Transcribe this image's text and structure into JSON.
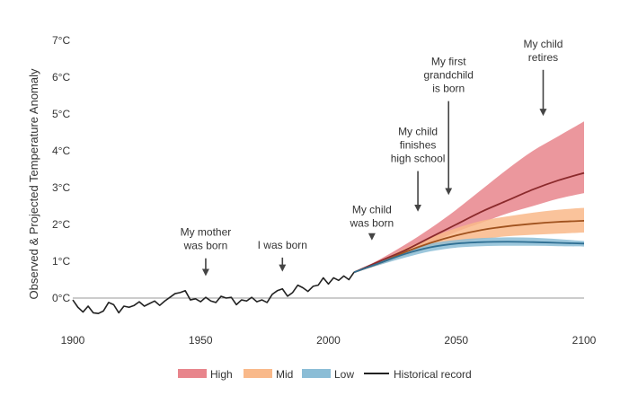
{
  "chart_data": {
    "type": "line",
    "title": "",
    "xlabel": "",
    "ylabel": "Observed & Projected Temperature Anomaly",
    "xlim": [
      1900,
      2100
    ],
    "ylim": [
      0,
      7
    ],
    "x_ticks": [
      {
        "value": 1900,
        "label": "1900"
      },
      {
        "value": 1950,
        "label": "1950"
      },
      {
        "value": 2000,
        "label": "2000"
      },
      {
        "value": 2050,
        "label": "2050"
      },
      {
        "value": 2100,
        "label": "2100"
      }
    ],
    "y_ticks": [
      {
        "value": 0,
        "label": "0°C"
      },
      {
        "value": 1,
        "label": "1°C"
      },
      {
        "value": 2,
        "label": "2°C"
      },
      {
        "value": 3,
        "label": "3°C"
      },
      {
        "value": 4,
        "label": "4°C"
      },
      {
        "value": 5,
        "label": "5°C"
      },
      {
        "value": 6,
        "label": "6°C"
      },
      {
        "value": 7,
        "label": "7°C"
      }
    ],
    "grid": false,
    "legend_position": "bottom",
    "legend": [
      {
        "key": "high",
        "label": "High",
        "kind": "band"
      },
      {
        "key": "mid",
        "label": "Mid",
        "kind": "band"
      },
      {
        "key": "low",
        "label": "Low",
        "kind": "band"
      },
      {
        "key": "historical",
        "label": "Historical record",
        "kind": "line"
      }
    ],
    "colors": {
      "high_fill": "#e8858c",
      "high_line": "#8b2a2c",
      "mid_fill": "#f9b98a",
      "mid_line": "#a0521e",
      "low_fill": "#8bbdd6",
      "low_line": "#2f6f93",
      "historical": "#222222",
      "axis": "#999999",
      "arrow": "#444444"
    },
    "historical": {
      "x": [
        1900,
        1902,
        1904,
        1906,
        1908,
        1910,
        1912,
        1914,
        1916,
        1918,
        1920,
        1922,
        1924,
        1926,
        1928,
        1930,
        1932,
        1934,
        1936,
        1938,
        1940,
        1942,
        1944,
        1946,
        1948,
        1950,
        1952,
        1954,
        1956,
        1958,
        1960,
        1962,
        1964,
        1966,
        1968,
        1970,
        1972,
        1974,
        1976,
        1978,
        1980,
        1982,
        1984,
        1986,
        1988,
        1990,
        1992,
        1994,
        1996,
        1998,
        2000,
        2002,
        2004,
        2006,
        2008,
        2010
      ],
      "y": [
        -0.05,
        -0.25,
        -0.38,
        -0.22,
        -0.4,
        -0.42,
        -0.35,
        -0.12,
        -0.18,
        -0.4,
        -0.22,
        -0.25,
        -0.2,
        -0.1,
        -0.22,
        -0.15,
        -0.08,
        -0.2,
        -0.08,
        0.02,
        0.12,
        0.15,
        0.2,
        -0.05,
        -0.02,
        -0.1,
        0.02,
        -0.08,
        -0.12,
        0.05,
        0.0,
        0.02,
        -0.18,
        -0.05,
        -0.08,
        0.02,
        -0.1,
        -0.05,
        -0.12,
        0.1,
        0.2,
        0.25,
        0.05,
        0.15,
        0.35,
        0.28,
        0.18,
        0.32,
        0.35,
        0.55,
        0.38,
        0.55,
        0.48,
        0.6,
        0.5,
        0.7
      ]
    },
    "projections": {
      "x": [
        2010,
        2020,
        2030,
        2040,
        2050,
        2060,
        2070,
        2080,
        2090,
        2100
      ],
      "high": {
        "median": [
          0.7,
          1.0,
          1.3,
          1.65,
          2.0,
          2.35,
          2.65,
          2.95,
          3.2,
          3.4
        ],
        "lower": [
          0.7,
          0.95,
          1.2,
          1.5,
          1.8,
          2.05,
          2.3,
          2.5,
          2.7,
          2.85
        ],
        "upper": [
          0.7,
          1.05,
          1.45,
          1.9,
          2.4,
          2.95,
          3.5,
          4.0,
          4.4,
          4.8
        ]
      },
      "mid": {
        "median": [
          0.7,
          0.95,
          1.25,
          1.5,
          1.7,
          1.85,
          1.95,
          2.02,
          2.07,
          2.1
        ],
        "lower": [
          0.7,
          0.9,
          1.15,
          1.35,
          1.5,
          1.6,
          1.68,
          1.72,
          1.75,
          1.78
        ],
        "upper": [
          0.7,
          1.0,
          1.35,
          1.65,
          1.9,
          2.1,
          2.22,
          2.32,
          2.4,
          2.45
        ]
      },
      "low": {
        "median": [
          0.7,
          0.95,
          1.2,
          1.38,
          1.48,
          1.52,
          1.53,
          1.52,
          1.5,
          1.48
        ],
        "lower": [
          0.7,
          0.9,
          1.1,
          1.27,
          1.37,
          1.41,
          1.42,
          1.42,
          1.41,
          1.4
        ],
        "upper": [
          0.7,
          1.0,
          1.28,
          1.48,
          1.58,
          1.63,
          1.65,
          1.64,
          1.6,
          1.55
        ]
      }
    },
    "annotations": [
      {
        "key": "mother",
        "lines": [
          "My mother",
          "was born"
        ],
        "x": 1952,
        "arrow_from": 1.08,
        "arrow_to": 0.5
      },
      {
        "key": "me",
        "lines": [
          "I was born"
        ],
        "x": 1982,
        "arrow_from": 1.1,
        "arrow_to": 0.62
      },
      {
        "key": "child-born",
        "lines": [
          "My child",
          "was born"
        ],
        "x": 2017,
        "arrow_from": 1.7,
        "arrow_to": 1.47
      },
      {
        "key": "high-school",
        "lines": [
          "My child",
          "finishes",
          "high school"
        ],
        "x": 2035,
        "arrow_from": 3.45,
        "arrow_to": 2.25
      },
      {
        "key": "grandchild",
        "lines": [
          "My first",
          "grandchild",
          "is born"
        ],
        "x": 2047,
        "arrow_from": 5.35,
        "arrow_to": 2.7
      },
      {
        "key": "retires",
        "lines": [
          "My child",
          "retires"
        ],
        "x": 2084,
        "arrow_from": 6.2,
        "arrow_to": 4.85
      }
    ]
  }
}
